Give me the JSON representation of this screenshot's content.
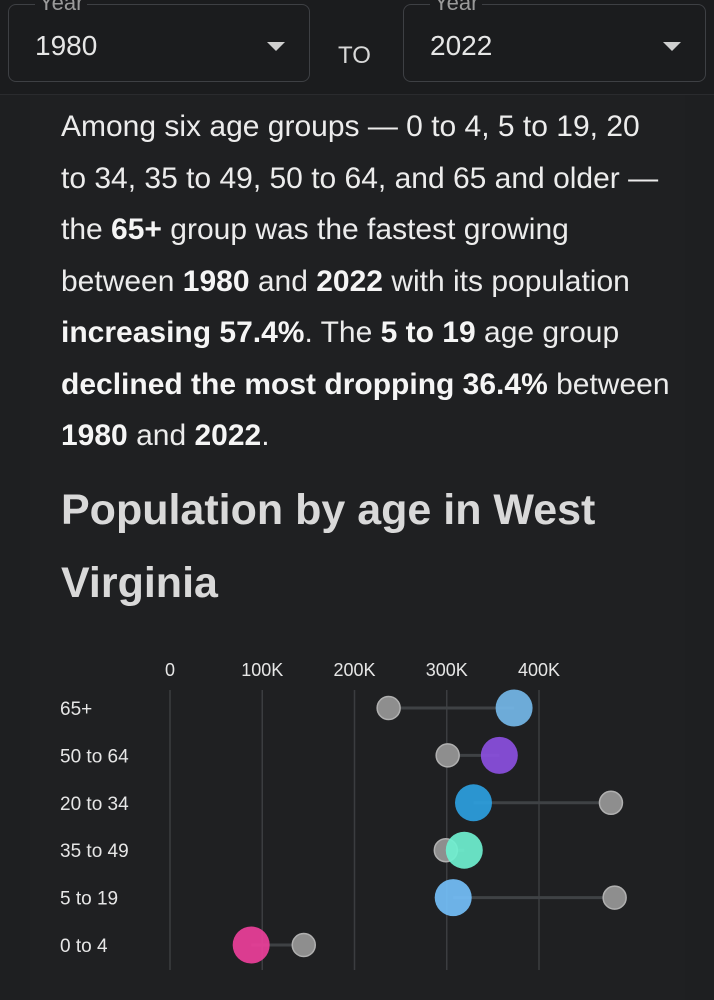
{
  "filters": {
    "from": {
      "legend": "Year",
      "value": "1980"
    },
    "to_label": "TO",
    "to": {
      "legend": "Year",
      "value": "2022"
    }
  },
  "summary": {
    "t1": "Among six age groups — 0 to 4, 5 to 19, 20 to 34, 35 to 49, 50 to 64, and 65 and older — the ",
    "b1": "65+",
    "t2": " group was the fastest growing between ",
    "b2": "1980",
    "t3": " and ",
    "b3": "2022",
    "t4": " with its population ",
    "b4": "increasing 57.4%",
    "t5": ". The ",
    "b5": "5 to 19",
    "t6": " age group ",
    "b6": "declined the most dropping 36.4%",
    "t7": " between ",
    "b7": "1980",
    "t8": " and ",
    "b8": "2022",
    "t9": "."
  },
  "chart_title": "Population by age in West Virginia",
  "chart_data": {
    "type": "dumbbell",
    "title": "Population by age in West Virginia",
    "xlim": [
      0,
      400000
    ],
    "xticks": [
      0,
      100000,
      200000,
      300000,
      400000
    ],
    "xtick_labels": [
      "0",
      "100K",
      "200K",
      "300K",
      "400K"
    ],
    "grid": true,
    "categories": [
      "65+",
      "50 to 64",
      "20 to 34",
      "35 to 49",
      "5 to 19",
      "0 to 4"
    ],
    "series": [
      {
        "values": [
          237000,
          301000,
          478000,
          299000,
          482000,
          145000
        ],
        "color": "#8e8e8e"
      },
      {
        "values": [
          373000,
          357000,
          329000,
          319000,
          307000,
          88000
        ],
        "colors": [
          "#74b7e8",
          "#8b4fe0",
          "#2d9fe0",
          "#6ff0d0",
          "#74bff8",
          "#eb3f9a"
        ]
      }
    ]
  }
}
